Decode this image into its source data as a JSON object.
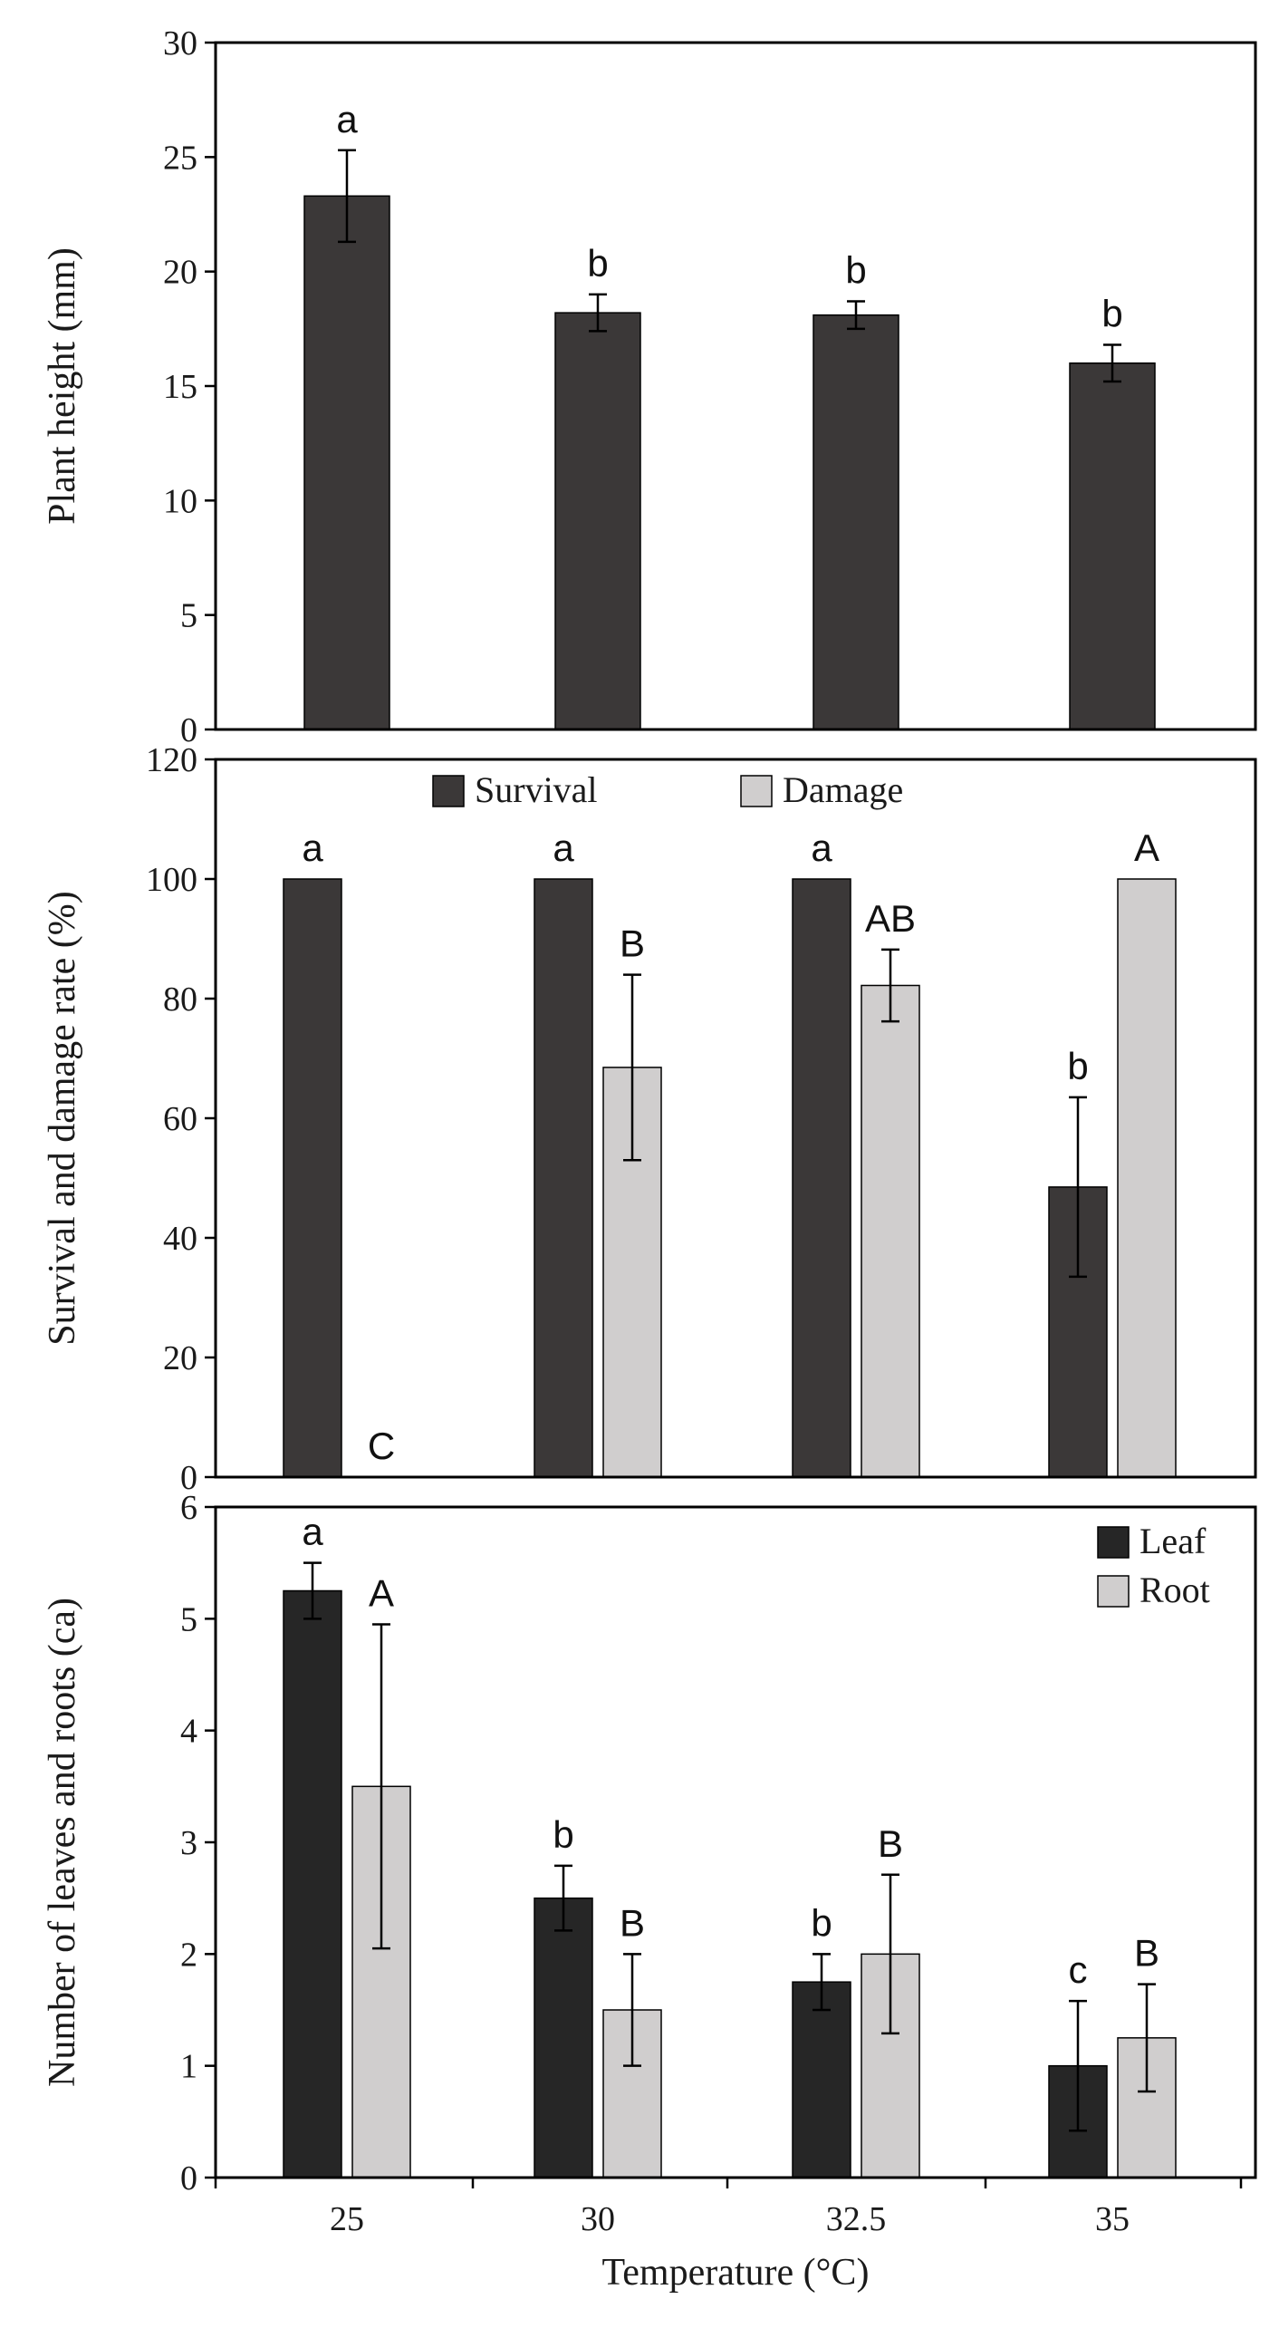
{
  "chart_data": [
    {
      "type": "bar",
      "id": "top",
      "title": "",
      "xlabel": "",
      "ylabel": "Plant height (mm)",
      "ylim": [
        0,
        30
      ],
      "yticks": [
        0,
        5,
        10,
        15,
        20,
        25,
        30
      ],
      "categories": [
        "25",
        "30",
        "32.5",
        "35"
      ],
      "show_xticks": false,
      "legend": null,
      "series": [
        {
          "name": "Plant height",
          "color": "#3b3838",
          "values": [
            23.3,
            18.2,
            18.1,
            16.0
          ],
          "errors": [
            2.0,
            0.8,
            0.6,
            0.8
          ],
          "labels": [
            "a",
            "b",
            "b",
            "b"
          ]
        }
      ]
    },
    {
      "type": "bar",
      "id": "middle",
      "title": "",
      "xlabel": "",
      "ylabel": "Survival and damage rate (%)",
      "ylim": [
        0,
        120
      ],
      "yticks": [
        0,
        20,
        40,
        60,
        80,
        100,
        120
      ],
      "categories": [
        "25",
        "30",
        "32.5",
        "35"
      ],
      "show_xticks": false,
      "legend": "top-center",
      "series": [
        {
          "name": "Survival",
          "color": "#3b3838",
          "values": [
            100,
            100,
            100,
            48.5
          ],
          "errors": [
            0,
            0,
            0,
            15
          ],
          "labels": [
            "a",
            "a",
            "a",
            "b"
          ]
        },
        {
          "name": "Damage",
          "color": "#d0cece",
          "values": [
            0,
            68.5,
            82.2,
            100
          ],
          "errors": [
            0,
            15.5,
            6,
            0
          ],
          "labels": [
            "C",
            "B",
            "AB",
            "A"
          ]
        }
      ]
    },
    {
      "type": "bar",
      "id": "bottom",
      "title": "",
      "xlabel": "Temperature (°C)",
      "ylabel": "Number of leaves and roots (ca)",
      "ylim": [
        0,
        6
      ],
      "yticks": [
        0,
        1,
        2,
        3,
        4,
        5,
        6
      ],
      "categories": [
        "25",
        "30",
        "32.5",
        "35"
      ],
      "show_xticks": true,
      "legend": "top-right",
      "series": [
        {
          "name": "Leaf",
          "color": "#262626",
          "values": [
            5.25,
            2.5,
            1.75,
            1.0
          ],
          "errors": [
            0.25,
            0.29,
            0.25,
            0.58
          ],
          "labels": [
            "a",
            "b",
            "b",
            "c"
          ]
        },
        {
          "name": "Root",
          "color": "#d0cece",
          "values": [
            3.5,
            1.5,
            2.0,
            1.25
          ],
          "errors": [
            1.45,
            0.5,
            0.71,
            0.48
          ],
          "labels": [
            "A",
            "B",
            "B",
            "B"
          ]
        }
      ]
    }
  ]
}
